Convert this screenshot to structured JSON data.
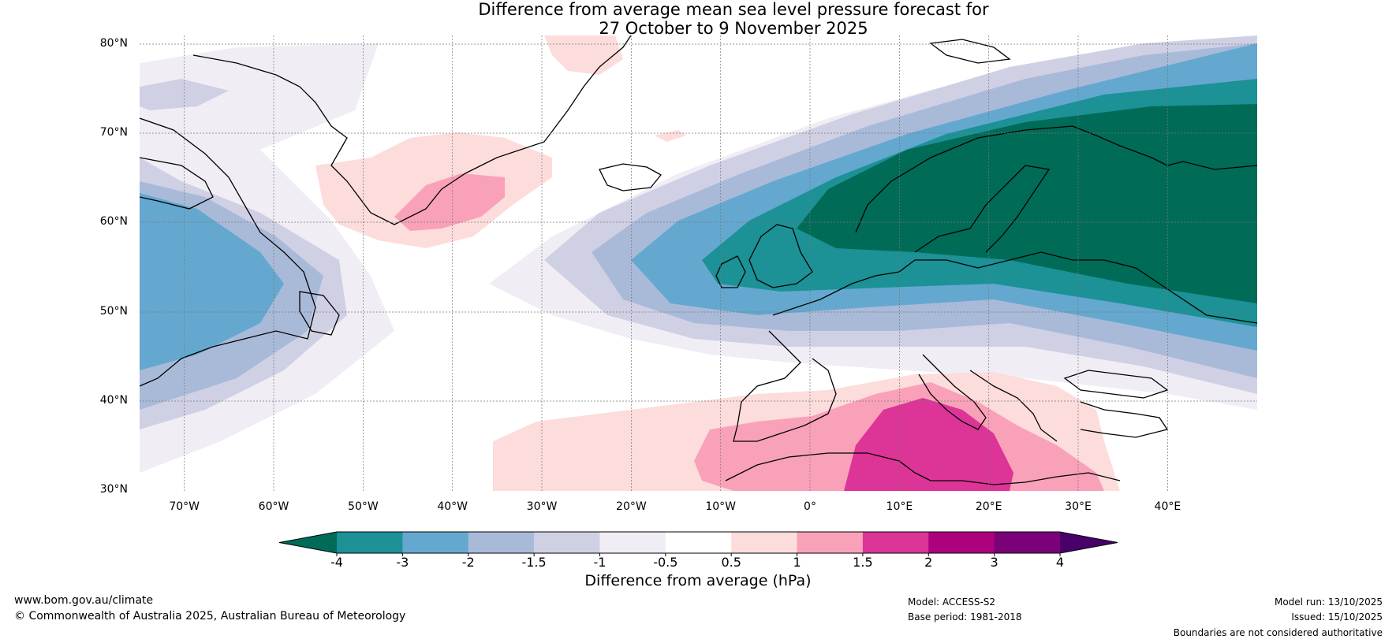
{
  "title": {
    "line1": "Difference from average mean sea level pressure forecast for",
    "line2": "27 October to 9 November 2025"
  },
  "map": {
    "lat_labels": [
      "80°N",
      "70°N",
      "60°N",
      "50°N",
      "40°N",
      "30°N"
    ],
    "lon_labels": [
      "70°W",
      "60°W",
      "50°W",
      "40°W",
      "30°W",
      "20°W",
      "10°W",
      "0°",
      "10°E",
      "20°E",
      "30°E",
      "40°E"
    ],
    "extent": {
      "lon_min": -75,
      "lon_max": 50,
      "lat_min": 30,
      "lat_max": 80
    }
  },
  "colorbar": {
    "title": "Difference from average (hPa)",
    "tick_labels": [
      "-4",
      "-3",
      "-2",
      "-1.5",
      "-1",
      "-0.5",
      "0.5",
      "1",
      "1.5",
      "2",
      "3",
      "4"
    ],
    "colors": [
      "#006b57",
      "#1c9196",
      "#64a8d0",
      "#a9bad9",
      "#d0d0e5",
      "#f1edf5",
      "#ffffff",
      "#fddcdc",
      "#f9a1b9",
      "#dd3497",
      "#ae017e",
      "#7a0177",
      "#49006a"
    ],
    "extend": "both"
  },
  "footer": {
    "website": "www.bom.gov.au/climate",
    "copyright": "© Commonwealth of Australia 2025, Australian Bureau of Meteorology",
    "model": "Model: ACCESS-S2",
    "base_period": "Base period: 1981-2018",
    "model_run": "Model run: 13/10/2025",
    "issued": "Issued: 15/10/2025",
    "disclaimer": "Boundaries are not considered authoritative"
  }
}
